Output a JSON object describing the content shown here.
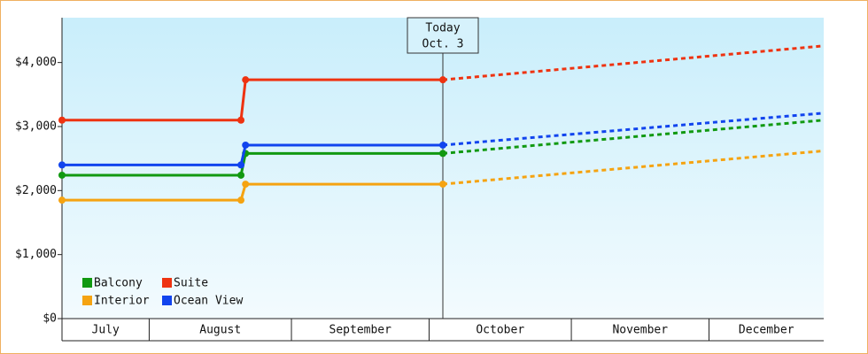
{
  "chart_data": {
    "type": "line",
    "x": [
      0,
      39,
      40,
      83,
      166
    ],
    "xlim": [
      0,
      166
    ],
    "xticks": [
      {
        "value": 0,
        "label": "July"
      },
      {
        "value": 19,
        "label": "August"
      },
      {
        "value": 50,
        "label": "September"
      },
      {
        "value": 80,
        "label": "October"
      },
      {
        "value": 111,
        "label": "November"
      },
      {
        "value": 141,
        "label": "December"
      }
    ],
    "ylim": [
      0,
      4700
    ],
    "yticks": [
      {
        "value": 0,
        "label": "$0"
      },
      {
        "value": 1000,
        "label": "$1,000"
      },
      {
        "value": 2000,
        "label": "$2,000"
      },
      {
        "value": 3000,
        "label": "$3,000"
      },
      {
        "value": 4000,
        "label": "$4,000"
      }
    ],
    "annotation": {
      "text": [
        "Today",
        "Oct. 3"
      ],
      "x": 83
    },
    "legend": "bottom-left",
    "series": [
      {
        "name": "Balcony",
        "color": "#119911",
        "values": [
          2240,
          2240,
          2580,
          2580,
          3100
        ]
      },
      {
        "name": "Interior",
        "color": "#f5a311",
        "values": [
          1850,
          1850,
          2100,
          2100,
          2620
        ]
      },
      {
        "name": "Suite",
        "color": "#ee3311",
        "values": [
          3100,
          3100,
          3730,
          3730,
          4260
        ]
      },
      {
        "name": "Ocean View",
        "color": "#1144ee",
        "values": [
          2400,
          2400,
          2710,
          2710,
          3210
        ]
      }
    ]
  }
}
